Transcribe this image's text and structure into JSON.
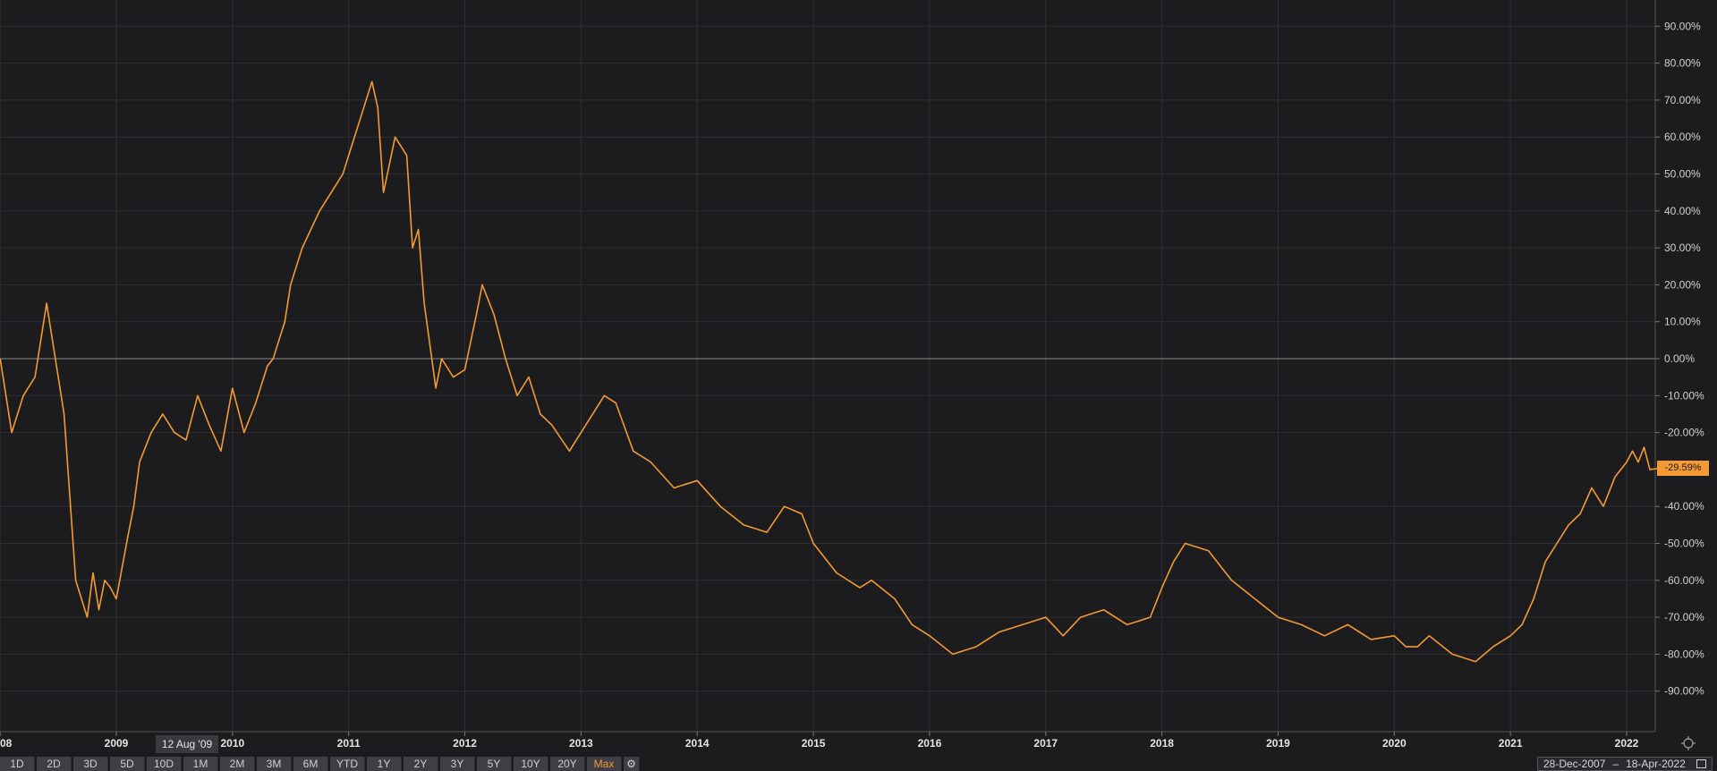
{
  "chart_data": {
    "type": "line",
    "title": "",
    "xlabel": "",
    "ylabel": "",
    "ylim": [
      -100,
      100
    ],
    "y_unit": "%",
    "y_ticks": [
      "90.00%",
      "80.00%",
      "70.00%",
      "60.00%",
      "50.00%",
      "40.00%",
      "30.00%",
      "20.00%",
      "10.00%",
      "0.00%",
      "-10.00%",
      "-20.00%",
      "-40.00%",
      "-50.00%",
      "-60.00%",
      "-70.00%",
      "-80.00%",
      "-90.00%"
    ],
    "x_ticks": [
      "08",
      "2009",
      "2010",
      "2011",
      "2012",
      "2013",
      "2014",
      "2015",
      "2016",
      "2017",
      "2018",
      "2019",
      "2020",
      "2021",
      "2022"
    ],
    "line_color": "#f39a34",
    "grid": true,
    "series": [
      {
        "x": [
          2008.0,
          2008.1,
          2008.2,
          2008.3,
          2008.4,
          2008.45,
          2008.55,
          2008.65,
          2008.75,
          2008.8,
          2008.85,
          2008.9,
          2008.95,
          2009.0,
          2009.1,
          2009.15,
          2009.2,
          2009.3,
          2009.4,
          2009.5,
          2009.6,
          2009.7,
          2009.8,
          2009.9,
          2010.0,
          2010.1,
          2010.2,
          2010.3,
          2010.35,
          2010.45,
          2010.5,
          2010.6,
          2010.75,
          2010.85,
          2010.95,
          2011.0,
          2011.1,
          2011.2,
          2011.25,
          2011.3,
          2011.4,
          2011.5,
          2011.55,
          2011.6,
          2011.65,
          2011.75,
          2011.8,
          2011.9,
          2012.0,
          2012.1,
          2012.15,
          2012.25,
          2012.35,
          2012.45,
          2012.55,
          2012.65,
          2012.75,
          2012.9,
          2013.0,
          2013.1,
          2013.2,
          2013.3,
          2013.45,
          2013.6,
          2013.8,
          2014.0,
          2014.2,
          2014.4,
          2014.6,
          2014.75,
          2014.9,
          2015.0,
          2015.2,
          2015.4,
          2015.5,
          2015.7,
          2015.85,
          2016.0,
          2016.2,
          2016.4,
          2016.6,
          2016.8,
          2017.0,
          2017.15,
          2017.3,
          2017.5,
          2017.7,
          2017.9,
          2018.0,
          2018.1,
          2018.2,
          2018.4,
          2018.6,
          2018.8,
          2019.0,
          2019.2,
          2019.4,
          2019.6,
          2019.8,
          2020.0,
          2020.1,
          2020.2,
          2020.3,
          2020.5,
          2020.7,
          2020.85,
          2021.0,
          2021.1,
          2021.2,
          2021.3,
          2021.4,
          2021.5,
          2021.6,
          2021.7,
          2021.8,
          2021.9,
          2022.0,
          2022.05,
          2022.1,
          2022.15,
          2022.2,
          2022.3
        ],
        "y": [
          0,
          -20,
          -10,
          -5,
          15,
          5,
          -15,
          -60,
          -70,
          -58,
          -68,
          -60,
          -62,
          -65,
          -48,
          -40,
          -28,
          -20,
          -15,
          -20,
          -22,
          -10,
          -18,
          -25,
          -8,
          -20,
          -12,
          -2,
          0,
          10,
          20,
          30,
          40,
          45,
          50,
          55,
          65,
          75,
          68,
          45,
          60,
          55,
          30,
          35,
          15,
          -8,
          0,
          -5,
          -3,
          12,
          20,
          12,
          0,
          -10,
          -5,
          -15,
          -18,
          -25,
          -20,
          -15,
          -10,
          -12,
          -25,
          -28,
          -35,
          -33,
          -40,
          -45,
          -47,
          -40,
          -42,
          -50,
          -58,
          -62,
          -60,
          -65,
          -72,
          -75,
          -80,
          -78,
          -74,
          -72,
          -70,
          -75,
          -70,
          -68,
          -72,
          -70,
          -62,
          -55,
          -50,
          -52,
          -60,
          -65,
          -70,
          -72,
          -75,
          -72,
          -76,
          -75,
          -78,
          -78,
          -75,
          -80,
          -82,
          -78,
          -75,
          -72,
          -65,
          -55,
          -50,
          -45,
          -42,
          -35,
          -40,
          -32,
          -28,
          -25,
          -28,
          -24,
          -30,
          -29.59
        ]
      }
    ],
    "last_value_label": "-29.59%"
  },
  "hover_date": "12 Aug '09",
  "range_buttons": [
    "1D",
    "2D",
    "3D",
    "5D",
    "10D",
    "1M",
    "2M",
    "3M",
    "6M",
    "YTD",
    "1Y",
    "2Y",
    "3Y",
    "5Y",
    "10Y",
    "20Y",
    "Max"
  ],
  "active_range": "Max",
  "date_range": {
    "start": "28-Dec-2007",
    "separator": "–",
    "end": "18-Apr-2022"
  }
}
